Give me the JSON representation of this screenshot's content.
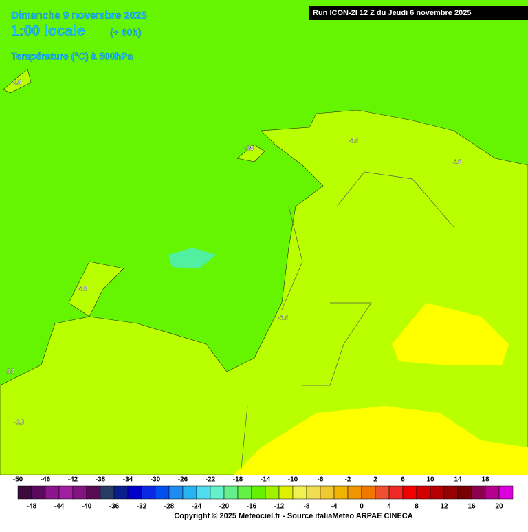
{
  "header": {
    "date": "Dimanche 9 novembre 2025",
    "time": "1:00 locale",
    "lead": "(+ 60h)",
    "parameter": "Température (°C) à 500hPa",
    "run": "Run ICON-2I 12 Z du Jeudi 6 novembre 2025"
  },
  "contour_labels": [
    -18,
    -18,
    -18,
    -18,
    -18,
    -18,
    -18,
    -18
  ],
  "legend": {
    "top_labels": [
      -50,
      -46,
      -42,
      -38,
      -34,
      -30,
      -26,
      -22,
      -18,
      -14,
      -10,
      -6,
      -2,
      2,
      6,
      10,
      14,
      18
    ],
    "bottom_labels": [
      -48,
      -44,
      -40,
      -36,
      -32,
      -28,
      -24,
      -20,
      -16,
      -12,
      -8,
      -4,
      0,
      4,
      8,
      12,
      16,
      20
    ],
    "colors": [
      "#3c0a3c",
      "#5a0a5a",
      "#8c148c",
      "#a01ea0",
      "#82147f",
      "#5a0a50",
      "#283c64",
      "#0a1e8c",
      "#0000c8",
      "#0a28e6",
      "#0050f0",
      "#1e8cf0",
      "#28b4f0",
      "#50dcf0",
      "#64f0c8",
      "#64f08c",
      "#64f046",
      "#64f000",
      "#a0f000",
      "#dcf000",
      "#f0f050",
      "#f0dc50",
      "#f0c832",
      "#f0b400",
      "#f09600",
      "#f07800",
      "#f05032",
      "#f02828",
      "#f00000",
      "#d20000",
      "#b40000",
      "#960000",
      "#780000",
      "#8c0050",
      "#b4008c",
      "#dc00dc"
    ]
  },
  "footer": {
    "copyright": "Copyright © 2025 Meteociel.fr - Source italiaMeteo ARPAE CINECA"
  }
}
